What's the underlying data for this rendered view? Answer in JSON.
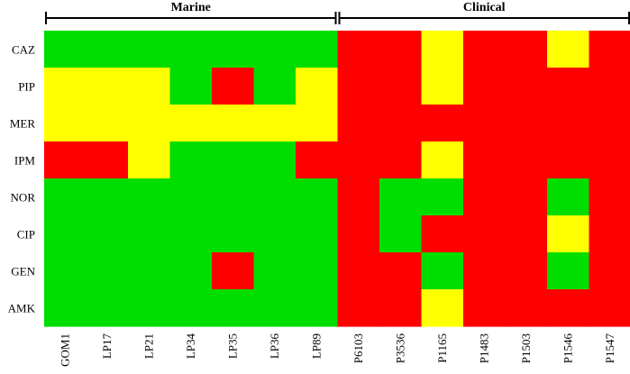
{
  "chart_data": {
    "type": "heatmap",
    "groups": [
      {
        "label": "Marine",
        "start": 0,
        "end": 6
      },
      {
        "label": "Clinical",
        "start": 7,
        "end": 13
      }
    ],
    "rows": [
      "CAZ",
      "PIP",
      "MER",
      "IPM",
      "NOR",
      "CIP",
      "GEN",
      "AMK"
    ],
    "columns": [
      "GOM1",
      "LP17",
      "LP21",
      "LP34",
      "LP35",
      "LP36",
      "LP89",
      "P6103",
      "P3536",
      "P1165",
      "P1483",
      "P1503",
      "P1546",
      "P1547"
    ],
    "values": [
      [
        "G",
        "G",
        "G",
        "G",
        "G",
        "G",
        "G",
        "R",
        "R",
        "Y",
        "R",
        "R",
        "Y",
        "R"
      ],
      [
        "Y",
        "Y",
        "Y",
        "G",
        "R",
        "G",
        "Y",
        "R",
        "R",
        "Y",
        "R",
        "R",
        "R",
        "R"
      ],
      [
        "Y",
        "Y",
        "Y",
        "Y",
        "Y",
        "Y",
        "Y",
        "R",
        "R",
        "R",
        "R",
        "R",
        "R",
        "R"
      ],
      [
        "R",
        "R",
        "Y",
        "G",
        "G",
        "G",
        "R",
        "R",
        "R",
        "Y",
        "R",
        "R",
        "R",
        "R"
      ],
      [
        "G",
        "G",
        "G",
        "G",
        "G",
        "G",
        "G",
        "R",
        "G",
        "G",
        "R",
        "R",
        "G",
        "R"
      ],
      [
        "G",
        "G",
        "G",
        "G",
        "G",
        "G",
        "G",
        "R",
        "G",
        "R",
        "R",
        "R",
        "Y",
        "R"
      ],
      [
        "G",
        "G",
        "G",
        "G",
        "R",
        "G",
        "G",
        "R",
        "R",
        "G",
        "R",
        "R",
        "G",
        "R"
      ],
      [
        "G",
        "G",
        "G",
        "G",
        "G",
        "G",
        "G",
        "R",
        "R",
        "Y",
        "R",
        "R",
        "R",
        "R"
      ]
    ],
    "colors": {
      "G": "#00dd00",
      "Y": "#ffff00",
      "R": "#ff0000"
    }
  }
}
